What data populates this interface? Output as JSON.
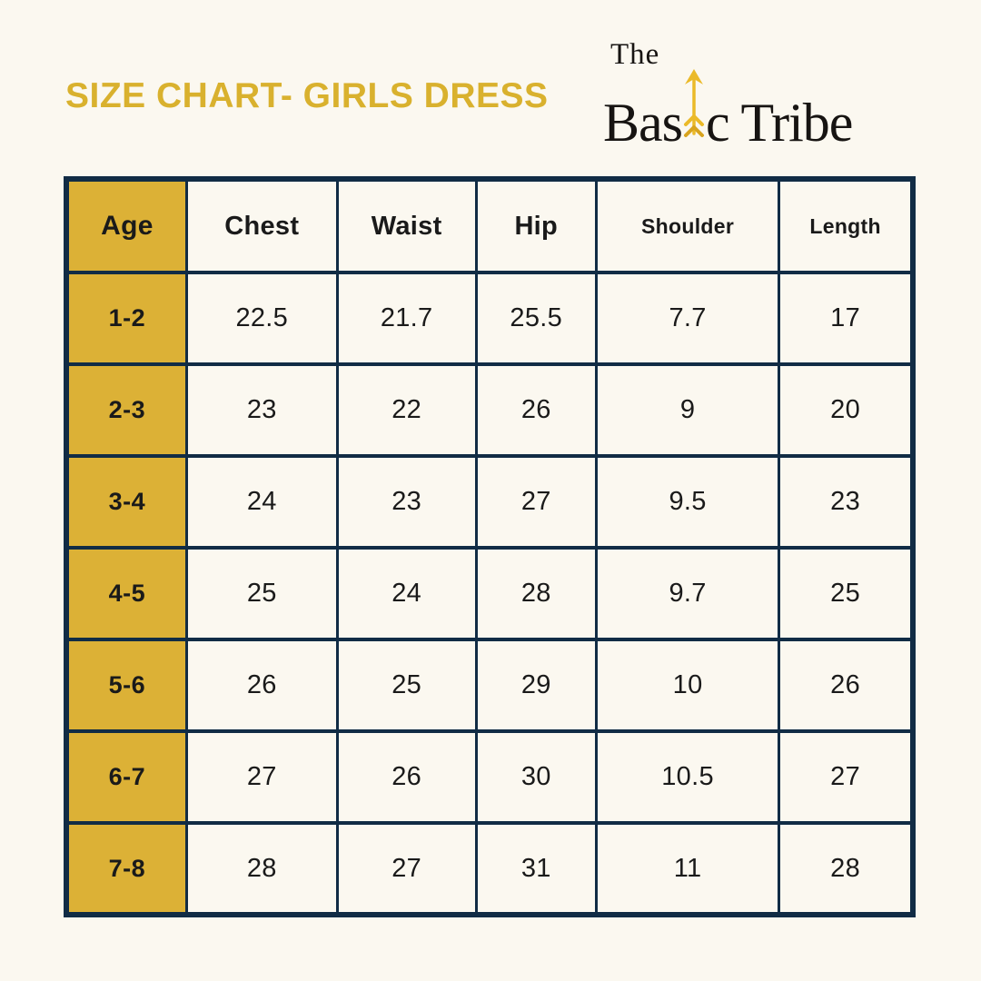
{
  "page": {
    "background_color": "#FBF8F0",
    "border_color": "#112C45",
    "accent_gold": "#DCB136",
    "title_gold": "#D9B12E",
    "arrow_gold": "#EBBA29",
    "logo_ink": "#171412"
  },
  "header": {
    "title": "SIZE CHART- GIRLS DRESS"
  },
  "logo": {
    "line1": "The",
    "word_part1": "Bas",
    "word_part2": "c Tribe",
    "arrow_icon": "arrow-up-icon"
  },
  "table": {
    "columns": [
      {
        "label": "Age",
        "small": false
      },
      {
        "label": "Chest",
        "small": false
      },
      {
        "label": "Waist",
        "small": false
      },
      {
        "label": "Hip",
        "small": false
      },
      {
        "label": "Shoulder",
        "small": true
      },
      {
        "label": "Length",
        "small": true
      }
    ],
    "rows": [
      {
        "age": "1-2",
        "values": [
          "22.5",
          "21.7",
          "25.5",
          "7.7",
          "17"
        ]
      },
      {
        "age": "2-3",
        "values": [
          "23",
          "22",
          "26",
          "9",
          "20"
        ]
      },
      {
        "age": "3-4",
        "values": [
          "24",
          "23",
          "27",
          "9.5",
          "23"
        ]
      },
      {
        "age": "4-5",
        "values": [
          "25",
          "24",
          "28",
          "9.7",
          "25"
        ]
      },
      {
        "age": "5-6",
        "values": [
          "26",
          "25",
          "29",
          "10",
          "26"
        ]
      },
      {
        "age": "6-7",
        "values": [
          "27",
          "26",
          "30",
          "10.5",
          "27"
        ]
      },
      {
        "age": "7-8",
        "values": [
          "28",
          "27",
          "31",
          "11",
          "28"
        ]
      }
    ]
  }
}
